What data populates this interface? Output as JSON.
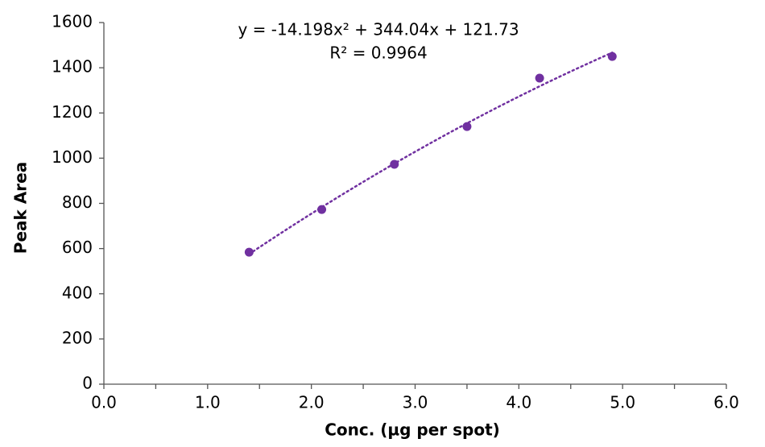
{
  "chart_data": {
    "type": "scatter",
    "x_label": "Conc. (µg per spot)",
    "y_label": "Peak Area",
    "trendline": {
      "type": "polynomial",
      "order": 2,
      "style": "dotted",
      "equation": "y = -14.198x² + 344.04x + 121.73",
      "r_squared": "R² = 0.9964"
    },
    "series": [
      {
        "name": "Peak Area",
        "color": "#7030a0",
        "x": [
          1.4,
          2.1,
          2.8,
          3.5,
          4.2,
          4.9
        ],
        "values": [
          584,
          773,
          973,
          1140,
          1354,
          1450
        ]
      }
    ],
    "xlim": [
      0,
      6
    ],
    "xticks": [
      {
        "value": 0,
        "label": "0.0"
      },
      {
        "value": 1,
        "label": "1.0"
      },
      {
        "value": 2,
        "label": "2.0"
      },
      {
        "value": 3,
        "label": "3.0"
      },
      {
        "value": 4,
        "label": "4.0"
      },
      {
        "value": 5,
        "label": "5.0"
      },
      {
        "value": 6,
        "label": "6.0"
      }
    ],
    "xticks_minor": [
      0.5,
      1.5,
      2.5,
      3.5,
      4.5,
      5.5
    ],
    "ylim": [
      0,
      1600
    ],
    "yticks": [
      0,
      200,
      400,
      600,
      800,
      1000,
      1200,
      1400,
      1600
    ],
    "grid": false
  }
}
